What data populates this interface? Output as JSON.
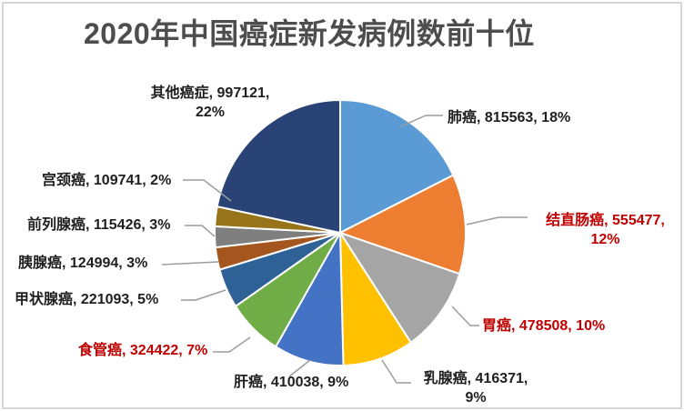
{
  "chart_data": {
    "type": "pie",
    "title": "2020年中国癌症新发病例数前十位",
    "units": "新发病例数 (cases)",
    "start_angle_deg": 0,
    "direction": "clockwise",
    "legend_position": "none",
    "label_style": "outside-with-leader-lines",
    "leader_line_color": "#9c9c9c",
    "slice_border_color": "#ffffff",
    "title_color": "#4d4d4d",
    "items": [
      {
        "id": "lung-cancer",
        "label": "肺癌",
        "value": 815563,
        "percent": "18%",
        "color": "#5B9BD5",
        "label_color": "#1f1f1f",
        "display": "肺癌, 815563, 18%"
      },
      {
        "id": "colorectal-cancer",
        "label": "结直肠癌",
        "value": 555477,
        "percent": "12%",
        "color": "#ED7D31",
        "label_color": "#C00000",
        "display": "结直肠癌, 555477,\n12%"
      },
      {
        "id": "stomach-cancer",
        "label": "胃癌",
        "value": 478508,
        "percent": "10%",
        "color": "#A5A5A5",
        "label_color": "#C00000",
        "display": "胃癌, 478508, 10%"
      },
      {
        "id": "breast-cancer",
        "label": "乳腺癌",
        "value": 416371,
        "percent": "9%",
        "color": "#FFC000",
        "label_color": "#1f1f1f",
        "display": "乳腺癌, 416371,\n9%"
      },
      {
        "id": "liver-cancer",
        "label": "肝癌",
        "value": 410038,
        "percent": "9%",
        "color": "#4472C4",
        "label_color": "#1f1f1f",
        "display": "肝癌, 410038, 9%"
      },
      {
        "id": "esophageal-cancer",
        "label": "食管癌",
        "value": 324422,
        "percent": "7%",
        "color": "#70AD47",
        "label_color": "#C00000",
        "display": "食管癌, 324422, 7%"
      },
      {
        "id": "thyroid-cancer",
        "label": "甲状腺癌",
        "value": 221093,
        "percent": "5%",
        "color": "#2E6296",
        "label_color": "#1f1f1f",
        "display": "甲状腺癌, 221093, 5%"
      },
      {
        "id": "pancreatic-cancer",
        "label": "胰腺癌",
        "value": 124994,
        "percent": "3%",
        "color": "#A5561E",
        "label_color": "#1f1f1f",
        "display": "胰腺癌, 124994, 3%"
      },
      {
        "id": "prostate-cancer",
        "label": "前列腺癌",
        "value": 115426,
        "percent": "3%",
        "color": "#7F7F7F",
        "label_color": "#1f1f1f",
        "display": "前列腺癌, 115426, 3%"
      },
      {
        "id": "cervical-cancer",
        "label": "宫颈癌",
        "value": 109741,
        "percent": "2%",
        "color": "#97731A",
        "label_color": "#1f1f1f",
        "display": "宫颈癌, 109741, 2%"
      },
      {
        "id": "other-cancers",
        "label": "其他癌症",
        "value": 997121,
        "percent": "22%",
        "color": "#2A4377",
        "label_color": "#1f1f1f",
        "display": "其他癌症, 997121,\n22%"
      }
    ]
  }
}
